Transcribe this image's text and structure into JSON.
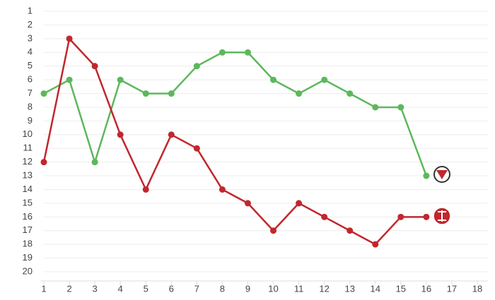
{
  "chart_data": {
    "type": "line",
    "x": [
      1,
      2,
      3,
      4,
      5,
      6,
      7,
      8,
      9,
      10,
      11,
      12,
      13,
      14,
      15,
      16
    ],
    "series": [
      {
        "color": "#5cb85c",
        "values": [
          7,
          6,
          12,
          6,
          7,
          7,
          5,
          4,
          4,
          6,
          7,
          6,
          7,
          8,
          8,
          13
        ]
      },
      {
        "color": "#c1272d",
        "values": [
          12,
          3,
          5,
          10,
          14,
          10,
          11,
          14,
          15,
          17,
          15,
          16,
          17,
          18,
          16,
          16
        ]
      }
    ],
    "xlim": [
      1,
      18
    ],
    "xticks": [
      1,
      2,
      3,
      4,
      5,
      6,
      7,
      8,
      9,
      10,
      11,
      12,
      13,
      14,
      15,
      16,
      17,
      18
    ],
    "ylim": [
      20,
      1
    ],
    "yticks": [
      1,
      2,
      3,
      4,
      5,
      6,
      7,
      8,
      9,
      10,
      11,
      12,
      13,
      14,
      15,
      16,
      17,
      18,
      19,
      20
    ],
    "grid": true
  }
}
